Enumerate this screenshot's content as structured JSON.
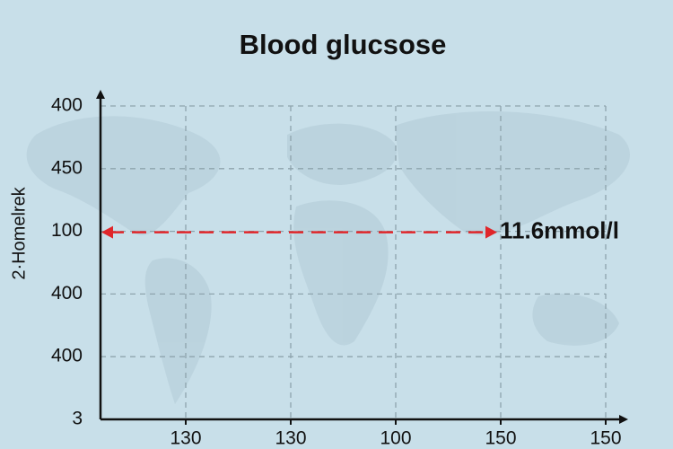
{
  "chart_data": {
    "type": "annotated-grid",
    "title": "Blood glucsose",
    "ylabel": "2·Homelrek",
    "y_labels": [
      "400",
      "450",
      "100",
      "400",
      "400",
      "3"
    ],
    "x_labels": [
      "130",
      "130",
      "100",
      "150",
      "150"
    ],
    "annotation": "11.6mmol/l"
  }
}
